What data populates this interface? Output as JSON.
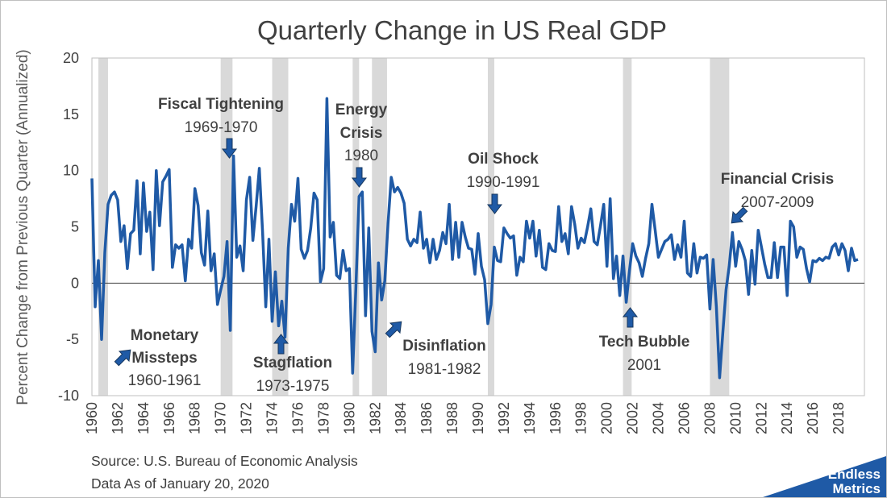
{
  "chart_data": {
    "type": "line",
    "title": "Quarterly Change in US Real GDP",
    "ylabel": "Percent Change from Previous Quarter (Annualized)",
    "xlabel": "",
    "ylim": [
      -10,
      20
    ],
    "yticks": [
      -10,
      -5,
      0,
      5,
      10,
      15,
      20
    ],
    "xlim": [
      1960.0,
      2020.0
    ],
    "xticks": [
      "1960",
      "1962",
      "1964",
      "1966",
      "1968",
      "1970",
      "1972",
      "1974",
      "1976",
      "1978",
      "1980",
      "1982",
      "1984",
      "1986",
      "1988",
      "1990",
      "1992",
      "1994",
      "1996",
      "1998",
      "2000",
      "2002",
      "2004",
      "2006",
      "2008",
      "2010",
      "2012",
      "2014",
      "2016",
      "2018"
    ],
    "grid": false,
    "legend": "none",
    "color": "#1f5aa6",
    "recession_color": "#d9d9d9",
    "recessions": [
      [
        1960.5,
        1961.25
      ],
      [
        1970.0,
        1970.92
      ],
      [
        1974.0,
        1975.25
      ],
      [
        1980.25,
        1980.75
      ],
      [
        1981.75,
        1982.92
      ],
      [
        1990.75,
        1991.25
      ],
      [
        2001.25,
        2001.92
      ],
      [
        2008.0,
        2009.5
      ]
    ],
    "series": [
      {
        "values": [
          [
            1960.0,
            9.3
          ],
          [
            1960.25,
            -2.1
          ],
          [
            1960.5,
            2.0
          ],
          [
            1960.75,
            -5.0
          ],
          [
            1961.0,
            2.7
          ],
          [
            1961.25,
            7.0
          ],
          [
            1961.5,
            7.8
          ],
          [
            1961.75,
            8.1
          ],
          [
            1962.0,
            7.4
          ],
          [
            1962.25,
            3.7
          ],
          [
            1962.5,
            5.1
          ],
          [
            1962.75,
            1.3
          ],
          [
            1963.0,
            4.4
          ],
          [
            1963.25,
            4.7
          ],
          [
            1963.5,
            9.1
          ],
          [
            1963.75,
            2.6
          ],
          [
            1964.0,
            8.9
          ],
          [
            1964.25,
            4.6
          ],
          [
            1964.5,
            6.3
          ],
          [
            1964.75,
            1.2
          ],
          [
            1965.0,
            10.0
          ],
          [
            1965.25,
            5.1
          ],
          [
            1965.5,
            9.0
          ],
          [
            1965.75,
            9.5
          ],
          [
            1966.0,
            10.1
          ],
          [
            1966.25,
            1.4
          ],
          [
            1966.5,
            3.4
          ],
          [
            1966.75,
            3.1
          ],
          [
            1967.0,
            3.4
          ],
          [
            1967.25,
            0.2
          ],
          [
            1967.5,
            3.9
          ],
          [
            1967.75,
            3.1
          ],
          [
            1968.0,
            8.4
          ],
          [
            1968.25,
            6.9
          ],
          [
            1968.5,
            2.7
          ],
          [
            1968.75,
            1.6
          ],
          [
            1969.0,
            6.4
          ],
          [
            1969.25,
            1.1
          ],
          [
            1969.5,
            2.6
          ],
          [
            1969.75,
            -1.9
          ],
          [
            1970.0,
            -0.6
          ],
          [
            1970.25,
            0.6
          ],
          [
            1970.5,
            3.7
          ],
          [
            1970.75,
            -4.2
          ],
          [
            1971.0,
            11.3
          ],
          [
            1971.25,
            2.3
          ],
          [
            1971.5,
            3.3
          ],
          [
            1971.75,
            1.1
          ],
          [
            1972.0,
            7.4
          ],
          [
            1972.25,
            9.4
          ],
          [
            1972.5,
            3.8
          ],
          [
            1972.75,
            6.8
          ],
          [
            1973.0,
            10.2
          ],
          [
            1973.25,
            4.6
          ],
          [
            1973.5,
            -2.1
          ],
          [
            1973.75,
            3.9
          ],
          [
            1974.0,
            -3.4
          ],
          [
            1974.25,
            1.0
          ],
          [
            1974.5,
            -3.8
          ],
          [
            1974.75,
            -1.6
          ],
          [
            1975.0,
            -4.8
          ],
          [
            1975.25,
            3.1
          ],
          [
            1975.5,
            7.0
          ],
          [
            1975.75,
            5.5
          ],
          [
            1976.0,
            9.3
          ],
          [
            1976.25,
            3.0
          ],
          [
            1976.5,
            2.2
          ],
          [
            1976.75,
            2.9
          ],
          [
            1977.0,
            4.9
          ],
          [
            1977.25,
            8.0
          ],
          [
            1977.5,
            7.4
          ],
          [
            1977.75,
            0.1
          ],
          [
            1978.0,
            1.3
          ],
          [
            1978.25,
            16.4
          ],
          [
            1978.5,
            4.1
          ],
          [
            1978.75,
            5.4
          ],
          [
            1979.0,
            0.7
          ],
          [
            1979.25,
            0.4
          ],
          [
            1979.5,
            2.9
          ],
          [
            1979.75,
            1.1
          ],
          [
            1980.0,
            1.3
          ],
          [
            1980.25,
            -8.0
          ],
          [
            1980.5,
            -0.5
          ],
          [
            1980.75,
            7.7
          ],
          [
            1981.0,
            8.1
          ],
          [
            1981.25,
            -2.9
          ],
          [
            1981.5,
            4.9
          ],
          [
            1981.75,
            -4.3
          ],
          [
            1982.0,
            -6.1
          ],
          [
            1982.25,
            1.8
          ],
          [
            1982.5,
            -1.5
          ],
          [
            1982.75,
            0.2
          ],
          [
            1983.0,
            5.3
          ],
          [
            1983.25,
            9.4
          ],
          [
            1983.5,
            8.1
          ],
          [
            1983.75,
            8.5
          ],
          [
            1984.0,
            8.0
          ],
          [
            1984.25,
            7.1
          ],
          [
            1984.5,
            3.9
          ],
          [
            1984.75,
            3.3
          ],
          [
            1985.0,
            3.9
          ],
          [
            1985.25,
            3.6
          ],
          [
            1985.5,
            6.3
          ],
          [
            1985.75,
            3.1
          ],
          [
            1986.0,
            3.9
          ],
          [
            1986.25,
            1.8
          ],
          [
            1986.5,
            3.9
          ],
          [
            1986.75,
            2.1
          ],
          [
            1987.0,
            2.9
          ],
          [
            1987.25,
            4.5
          ],
          [
            1987.5,
            3.5
          ],
          [
            1987.75,
            7.0
          ],
          [
            1988.0,
            2.1
          ],
          [
            1988.25,
            5.4
          ],
          [
            1988.5,
            2.3
          ],
          [
            1988.75,
            5.4
          ],
          [
            1989.0,
            4.1
          ],
          [
            1989.25,
            3.1
          ],
          [
            1989.5,
            3.0
          ],
          [
            1989.75,
            0.8
          ],
          [
            1990.0,
            4.4
          ],
          [
            1990.25,
            1.5
          ],
          [
            1990.5,
            0.3
          ],
          [
            1990.75,
            -3.6
          ],
          [
            1991.0,
            -1.9
          ],
          [
            1991.25,
            3.2
          ],
          [
            1991.5,
            2.0
          ],
          [
            1991.75,
            1.9
          ],
          [
            1992.0,
            4.9
          ],
          [
            1992.25,
            4.4
          ],
          [
            1992.5,
            4.0
          ],
          [
            1992.75,
            4.2
          ],
          [
            1993.0,
            0.7
          ],
          [
            1993.25,
            2.3
          ],
          [
            1993.5,
            1.9
          ],
          [
            1993.75,
            5.5
          ],
          [
            1994.0,
            4.0
          ],
          [
            1994.25,
            5.5
          ],
          [
            1994.5,
            2.4
          ],
          [
            1994.75,
            4.7
          ],
          [
            1995.0,
            1.4
          ],
          [
            1995.25,
            1.2
          ],
          [
            1995.5,
            3.5
          ],
          [
            1995.75,
            2.9
          ],
          [
            1996.0,
            2.8
          ],
          [
            1996.25,
            6.8
          ],
          [
            1996.5,
            3.7
          ],
          [
            1996.75,
            4.4
          ],
          [
            1997.0,
            2.6
          ],
          [
            1997.25,
            6.8
          ],
          [
            1997.5,
            5.2
          ],
          [
            1997.75,
            3.1
          ],
          [
            1998.0,
            4.0
          ],
          [
            1998.25,
            3.6
          ],
          [
            1998.5,
            5.0
          ],
          [
            1998.75,
            6.6
          ],
          [
            1999.0,
            3.7
          ],
          [
            1999.25,
            3.4
          ],
          [
            1999.5,
            5.1
          ],
          [
            1999.75,
            7.0
          ],
          [
            2000.0,
            1.5
          ],
          [
            2000.25,
            7.5
          ],
          [
            2000.5,
            0.4
          ],
          [
            2000.75,
            2.4
          ],
          [
            2001.0,
            -1.1
          ],
          [
            2001.25,
            2.4
          ],
          [
            2001.5,
            -1.7
          ],
          [
            2001.75,
            1.1
          ],
          [
            2002.0,
            3.5
          ],
          [
            2002.25,
            2.4
          ],
          [
            2002.5,
            1.8
          ],
          [
            2002.75,
            0.6
          ],
          [
            2003.0,
            2.2
          ],
          [
            2003.25,
            3.5
          ],
          [
            2003.5,
            7.0
          ],
          [
            2003.75,
            4.7
          ],
          [
            2004.0,
            2.3
          ],
          [
            2004.25,
            3.0
          ],
          [
            2004.5,
            3.7
          ],
          [
            2004.75,
            3.9
          ],
          [
            2005.0,
            4.3
          ],
          [
            2005.25,
            2.1
          ],
          [
            2005.5,
            3.4
          ],
          [
            2005.75,
            2.3
          ],
          [
            2006.0,
            5.5
          ],
          [
            2006.25,
            0.9
          ],
          [
            2006.5,
            0.6
          ],
          [
            2006.75,
            3.5
          ],
          [
            2007.0,
            0.9
          ],
          [
            2007.25,
            2.3
          ],
          [
            2007.5,
            2.2
          ],
          [
            2007.75,
            2.5
          ],
          [
            2008.0,
            -2.3
          ],
          [
            2008.25,
            2.1
          ],
          [
            2008.5,
            -2.1
          ],
          [
            2008.75,
            -8.4
          ],
          [
            2009.0,
            -4.4
          ],
          [
            2009.25,
            -0.6
          ],
          [
            2009.5,
            1.5
          ],
          [
            2009.75,
            4.5
          ],
          [
            2010.0,
            1.5
          ],
          [
            2010.25,
            3.7
          ],
          [
            2010.5,
            3.0
          ],
          [
            2010.75,
            2.0
          ],
          [
            2011.0,
            -1.0
          ],
          [
            2011.25,
            2.9
          ],
          [
            2011.5,
            -0.1
          ],
          [
            2011.75,
            4.7
          ],
          [
            2012.0,
            3.2
          ],
          [
            2012.25,
            1.7
          ],
          [
            2012.5,
            0.5
          ],
          [
            2012.75,
            0.5
          ],
          [
            2013.0,
            3.6
          ],
          [
            2013.25,
            0.5
          ],
          [
            2013.5,
            3.2
          ],
          [
            2013.75,
            3.2
          ],
          [
            2014.0,
            -1.1
          ],
          [
            2014.25,
            5.5
          ],
          [
            2014.5,
            5.0
          ],
          [
            2014.75,
            2.3
          ],
          [
            2015.0,
            3.2
          ],
          [
            2015.25,
            3.0
          ],
          [
            2015.5,
            1.3
          ],
          [
            2015.75,
            0.1
          ],
          [
            2016.0,
            2.0
          ],
          [
            2016.25,
            1.9
          ],
          [
            2016.5,
            2.2
          ],
          [
            2016.75,
            2.0
          ],
          [
            2017.0,
            2.3
          ],
          [
            2017.25,
            2.2
          ],
          [
            2017.5,
            3.2
          ],
          [
            2017.75,
            3.5
          ],
          [
            2018.0,
            2.5
          ],
          [
            2018.25,
            3.5
          ],
          [
            2018.5,
            2.9
          ],
          [
            2018.75,
            1.1
          ],
          [
            2019.0,
            3.1
          ],
          [
            2019.25,
            2.0
          ],
          [
            2019.5,
            2.1
          ]
        ]
      }
    ],
    "annotations": [
      {
        "label": "Fiscal Tightening",
        "period": "1969-1970",
        "arrow": "down"
      },
      {
        "label": "Monetary",
        "label2": "Missteps",
        "period": "1960-1961",
        "arrow": "up-left"
      },
      {
        "label": "Stagflation",
        "period": "1973-1975",
        "arrow": "up"
      },
      {
        "label": "Energy",
        "label2": "Crisis",
        "period": "1980",
        "arrow": "down"
      },
      {
        "label": "Disinflation",
        "period": "1981-1982",
        "arrow": "up-left"
      },
      {
        "label": "Oil Shock",
        "period": "1990-1991",
        "arrow": "down"
      },
      {
        "label": "Tech Bubble",
        "period": "2001",
        "arrow": "up"
      },
      {
        "label": "Financial Crisis",
        "period": "2007-2009",
        "arrow": "down-left"
      }
    ]
  },
  "footer": {
    "source": "Source: U.S. Bureau of Economic Analysis",
    "date": "Data As of January 20, 2020"
  },
  "logo": {
    "line1": "Endless",
    "line2": "Metrics",
    "color": "#1f5aa6"
  }
}
